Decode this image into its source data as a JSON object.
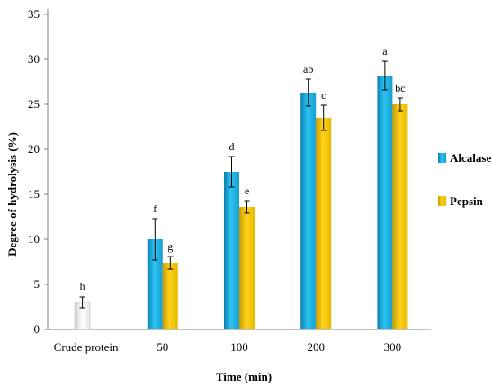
{
  "chart_data": {
    "type": "bar",
    "xlabel": "Time (min)",
    "ylabel": "Degree of hydrolysis (%)",
    "ylim": [
      0,
      35
    ],
    "yticks": [
      0,
      5,
      10,
      15,
      20,
      25,
      30,
      35
    ],
    "grid": false,
    "legend_position": "right",
    "categories": [
      "Crude protein",
      "50",
      "100",
      "200",
      "300"
    ],
    "crude_protein": {
      "value": 3.0,
      "error": 0.6,
      "label": "h",
      "color": "#e8e8e8"
    },
    "series": [
      {
        "name": "Alcalase",
        "color": "#1aa9d8",
        "values": [
          null,
          10.0,
          17.5,
          26.3,
          28.2
        ],
        "errors": [
          null,
          2.3,
          1.7,
          1.5,
          1.6
        ],
        "labels": [
          null,
          "f",
          "d",
          "ab",
          "a"
        ]
      },
      {
        "name": "Pepsin",
        "color": "#f2c200",
        "values": [
          null,
          7.4,
          13.6,
          23.5,
          25.0
        ],
        "errors": [
          null,
          0.7,
          0.7,
          1.4,
          0.7
        ],
        "labels": [
          null,
          "g",
          "e",
          "c",
          "bc"
        ]
      }
    ]
  }
}
